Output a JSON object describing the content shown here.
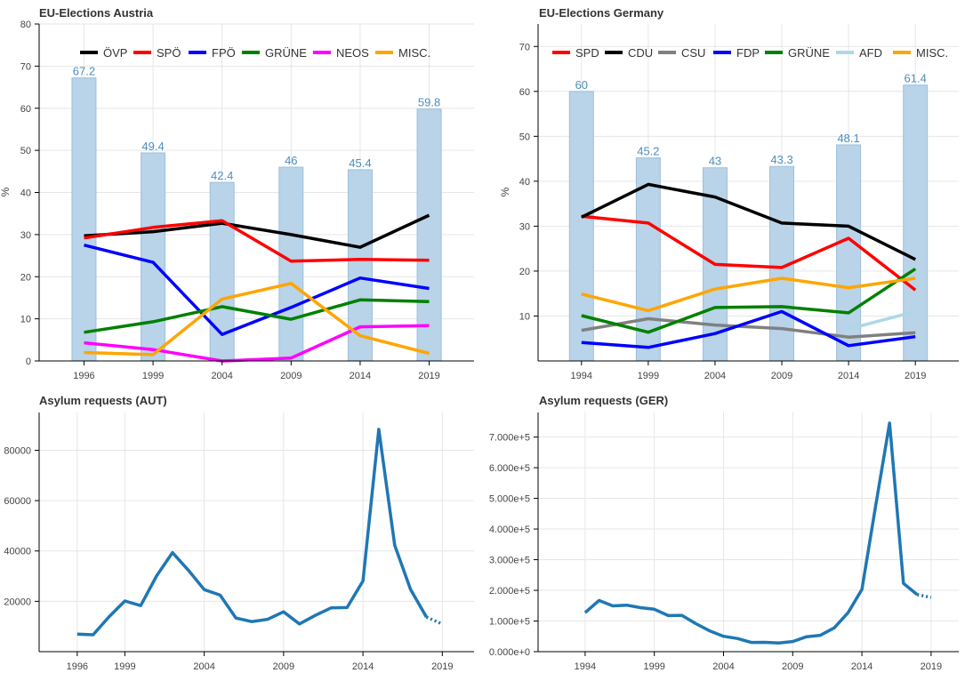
{
  "chart_data": [
    {
      "id": "aut-elections",
      "type": "bar",
      "title": "EU-Elections Austria",
      "ylabel": "%",
      "ylim": [
        0,
        80
      ],
      "yticks": [
        0,
        10,
        20,
        30,
        40,
        50,
        60,
        70,
        80
      ],
      "categories": [
        "1996",
        "1999",
        "2004",
        "2009",
        "2014",
        "2019"
      ],
      "bar_color": "#b9d3e8",
      "turnout": {
        "values": [
          67.2,
          49.4,
          42.4,
          46,
          45.4,
          59.8
        ],
        "labels": [
          "67.2",
          "49.4",
          "42.4",
          "46",
          "45.4",
          "59.8"
        ]
      },
      "series": [
        {
          "name": "ÖVP",
          "color": "#000000",
          "values": [
            29.7,
            30.7,
            32.7,
            30.0,
            27.0,
            34.6
          ]
        },
        {
          "name": "SPÖ",
          "color": "#ff0000",
          "values": [
            29.2,
            31.7,
            33.3,
            23.7,
            24.1,
            23.9
          ]
        },
        {
          "name": "FPÖ",
          "color": "#0000ff",
          "values": [
            27.5,
            23.4,
            6.3,
            12.7,
            19.7,
            17.2
          ]
        },
        {
          "name": "GRÜNE",
          "color": "#008000",
          "values": [
            6.8,
            9.3,
            12.9,
            9.9,
            14.5,
            14.1
          ]
        },
        {
          "name": "NEOS",
          "color": "#ff00ff",
          "values": [
            4.3,
            2.7,
            0.0,
            0.7,
            8.1,
            8.4
          ]
        },
        {
          "name": "MISC.",
          "color": "#ffa500",
          "values": [
            2.0,
            1.5,
            14.7,
            18.4,
            6.0,
            1.8
          ]
        }
      ]
    },
    {
      "id": "ger-elections",
      "type": "bar",
      "title": "EU-Elections Germany",
      "ylabel": "%",
      "ylim": [
        0,
        75
      ],
      "yticks": [
        10,
        20,
        30,
        40,
        50,
        60,
        70
      ],
      "categories": [
        "1994",
        "1999",
        "2004",
        "2009",
        "2014",
        "2019"
      ],
      "bar_color": "#b9d3e8",
      "turnout": {
        "values": [
          60,
          45.2,
          43,
          43.3,
          48.1,
          61.4
        ],
        "labels": [
          "60",
          "45.2",
          "43",
          "43.3",
          "48.1",
          "61.4"
        ]
      },
      "series": [
        {
          "name": "SPD",
          "color": "#ff0000",
          "values": [
            32.2,
            30.7,
            21.5,
            20.8,
            27.3,
            15.8
          ]
        },
        {
          "name": "CDU",
          "color": "#000000",
          "values": [
            32.0,
            39.3,
            36.5,
            30.7,
            30.0,
            22.6
          ]
        },
        {
          "name": "CSU",
          "color": "#808080",
          "values": [
            6.8,
            9.4,
            8.0,
            7.2,
            5.3,
            6.3
          ]
        },
        {
          "name": "FDP",
          "color": "#0000ff",
          "values": [
            4.1,
            3.0,
            6.1,
            11.0,
            3.4,
            5.4
          ]
        },
        {
          "name": "GRÜNE",
          "color": "#008000",
          "values": [
            10.1,
            6.4,
            11.9,
            12.1,
            10.7,
            20.5
          ]
        },
        {
          "name": "AFD",
          "color": "#add8e6",
          "values": [
            null,
            null,
            null,
            null,
            7.1,
            11.0
          ]
        },
        {
          "name": "MISC.",
          "color": "#ffa500",
          "values": [
            14.9,
            11.2,
            16.0,
            18.4,
            16.3,
            18.4
          ]
        }
      ]
    },
    {
      "id": "aut-asylum",
      "type": "line",
      "title": "Asylum requests (AUT)",
      "xlim": [
        1993.6,
        2021.0
      ],
      "xticks": [
        "1996",
        "1999",
        "2004",
        "2009",
        "2014",
        "2019"
      ],
      "ylim": [
        0,
        95000
      ],
      "yticks": [
        20000,
        40000,
        60000,
        80000
      ],
      "ytick_labels": [
        "20000",
        "40000",
        "60000",
        "80000"
      ],
      "color": "#1f77b4",
      "x": [
        1996,
        1997,
        1998,
        1999,
        2000,
        2001,
        2002,
        2003,
        2004,
        2005,
        2006,
        2007,
        2008,
        2009,
        2010,
        2011,
        2012,
        2013,
        2014,
        2015,
        2016,
        2017,
        2018
      ],
      "values": [
        6991,
        6719,
        13805,
        20129,
        18284,
        30127,
        39354,
        32359,
        24634,
        22461,
        13349,
        11921,
        12841,
        15821,
        11012,
        14416,
        17413,
        17503,
        28064,
        88340,
        42285,
        24735,
        13746
      ],
      "projection": {
        "x": [
          2018,
          2019
        ],
        "values": [
          13746,
          11000
        ]
      }
    },
    {
      "id": "ger-asylum",
      "type": "line",
      "title": "Asylum requests (GER)",
      "xlim": [
        1990.6,
        2021.0
      ],
      "xticks": [
        "1994",
        "1999",
        "2004",
        "2009",
        "2014",
        "2019"
      ],
      "ylim": [
        0,
        780000
      ],
      "yticks": [
        0,
        100000,
        200000,
        300000,
        400000,
        500000,
        600000,
        700000
      ],
      "ytick_labels": [
        "0.000e+0",
        "1.000e+5",
        "2.000e+5",
        "3.000e+5",
        "4.000e+5",
        "5.000e+5",
        "6.000e+5",
        "7.000e+5"
      ],
      "color": "#1f77b4",
      "x": [
        1994,
        1995,
        1996,
        1997,
        1998,
        1999,
        2000,
        2001,
        2002,
        2003,
        2004,
        2005,
        2006,
        2007,
        2008,
        2009,
        2010,
        2011,
        2012,
        2013,
        2014,
        2015,
        2016,
        2017,
        2018
      ],
      "values": [
        127210,
        166951,
        149193,
        151700,
        143429,
        138319,
        117648,
        118306,
        91471,
        67848,
        50152,
        42908,
        30100,
        30303,
        28018,
        33033,
        48589,
        53347,
        77651,
        127023,
        202834,
        476649,
        745545,
        222683,
        185853
      ],
      "projection": {
        "x": [
          2018,
          2019
        ],
        "values": [
          185853,
          177000
        ]
      }
    }
  ]
}
